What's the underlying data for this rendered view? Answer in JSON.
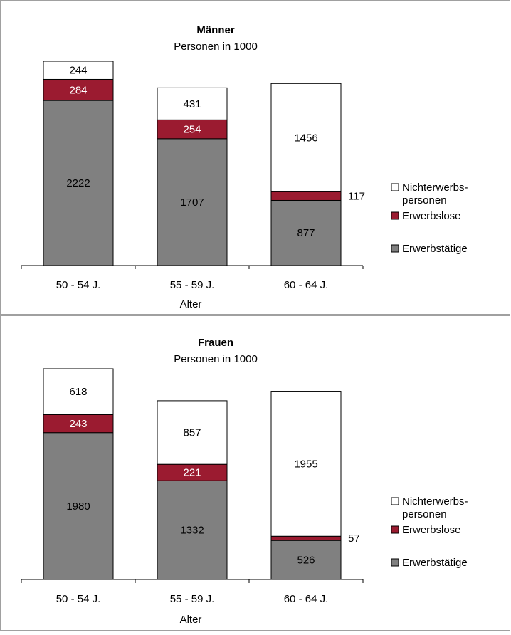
{
  "chart_data": [
    {
      "type": "bar",
      "stacked": true,
      "title": "Männer",
      "subtitle": "Personen in 1000",
      "xlabel": "Alter",
      "categories": [
        "50 - 54 J.",
        "55 - 59 J.",
        "60 - 64 J."
      ],
      "series": [
        {
          "name": "Erwerbstätige",
          "color": "#808080",
          "values": [
            2222,
            1707,
            877
          ]
        },
        {
          "name": "Erwerbslose",
          "color": "#9b1b30",
          "values": [
            284,
            254,
            117
          ]
        },
        {
          "name": "Nichterwerbs-personen",
          "color": "#ffffff",
          "values": [
            244,
            431,
            1456
          ]
        }
      ],
      "legend_position": "right",
      "grid": false
    },
    {
      "type": "bar",
      "stacked": true,
      "title": "Frauen",
      "subtitle": "Personen in 1000",
      "xlabel": "Alter",
      "categories": [
        "50 - 54 J.",
        "55 - 59 J.",
        "60 - 64 J."
      ],
      "series": [
        {
          "name": "Erwerbstätige",
          "color": "#808080",
          "values": [
            1980,
            1332,
            526
          ]
        },
        {
          "name": "Erwerbslose",
          "color": "#9b1b30",
          "values": [
            243,
            221,
            57
          ]
        },
        {
          "name": "Nichterwerbs-personen",
          "color": "#ffffff",
          "values": [
            618,
            857,
            1955
          ]
        }
      ],
      "legend_position": "right",
      "grid": false
    }
  ],
  "legend_lines": {
    "nicht_line1": "Nichterwerbs-",
    "nicht_line2": "personen",
    "erwerbslose": "Erwerbslose",
    "erwerbstaetige": "Erwerbstätige"
  }
}
